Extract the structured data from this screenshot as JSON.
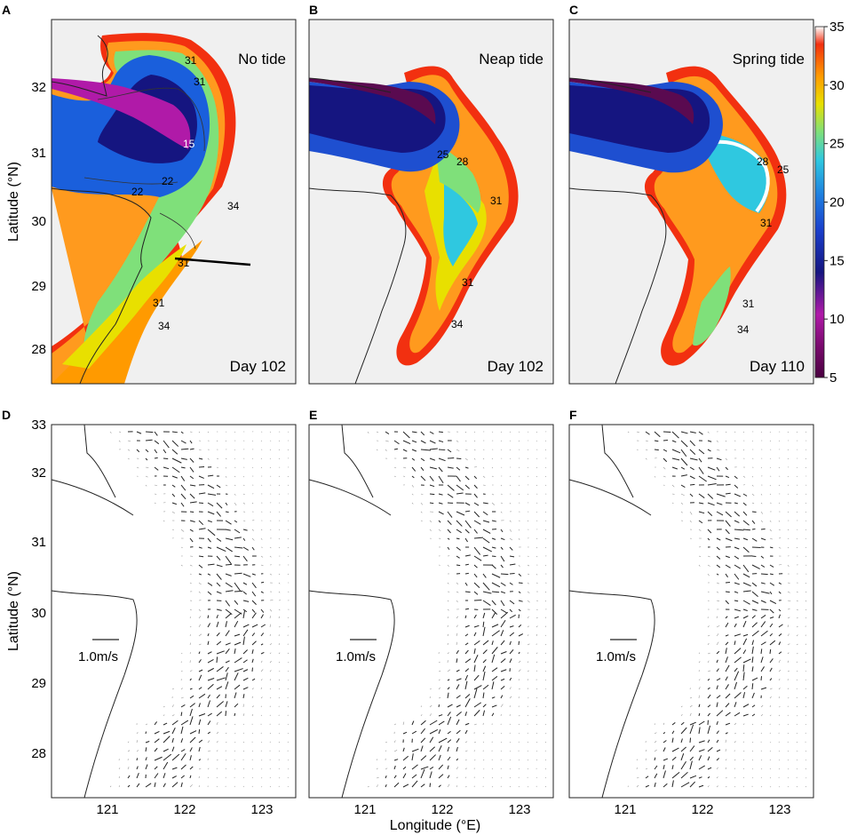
{
  "figure": {
    "ylabel": "Latitude (°N)",
    "xlabel": "Longitude (°E)",
    "x_ticks": [
      "121",
      "122",
      "123"
    ],
    "y_ticks_top": [
      "28",
      "29",
      "30",
      "31",
      "32"
    ],
    "y_ticks_bottom": [
      "28",
      "29",
      "30",
      "31",
      "32",
      "33"
    ],
    "colorbar": {
      "ticks": [
        "5",
        "10",
        "15",
        "20",
        "25",
        "30",
        "35"
      ],
      "range": [
        5,
        35
      ],
      "stops": [
        "#4a0040",
        "#7a0a6e",
        "#b01aa8",
        "#151580",
        "#1a3fcc",
        "#1e7fe0",
        "#2fc8e0",
        "#7fe07a",
        "#e8e000",
        "#ff9a00",
        "#f23010",
        "#ffffff"
      ]
    },
    "colors": {
      "land": "#f0f0f0",
      "plume": "#5a0a50",
      "shelf": "#ff9a1e",
      "edge": "#f23010"
    }
  },
  "panels": [
    {
      "id": "A",
      "letter": "A",
      "title": "No tide",
      "day": "Day 102",
      "contours": [
        "31",
        "31",
        "22",
        "22",
        "34",
        "31",
        "31",
        "34",
        "15"
      ]
    },
    {
      "id": "B",
      "letter": "B",
      "title": "Neap tide",
      "day": "Day 102",
      "contours": [
        "25",
        "28",
        "31",
        "31",
        "34"
      ]
    },
    {
      "id": "C",
      "letter": "C",
      "title": "Spring tide",
      "day": "Day 110",
      "contours": [
        "28",
        "25",
        "31",
        "31",
        "34"
      ]
    },
    {
      "id": "D",
      "letter": "D",
      "scale": "1.0m/s"
    },
    {
      "id": "E",
      "letter": "E",
      "scale": "1.0m/s"
    },
    {
      "id": "F",
      "letter": "F",
      "scale": "1.0m/s"
    }
  ]
}
